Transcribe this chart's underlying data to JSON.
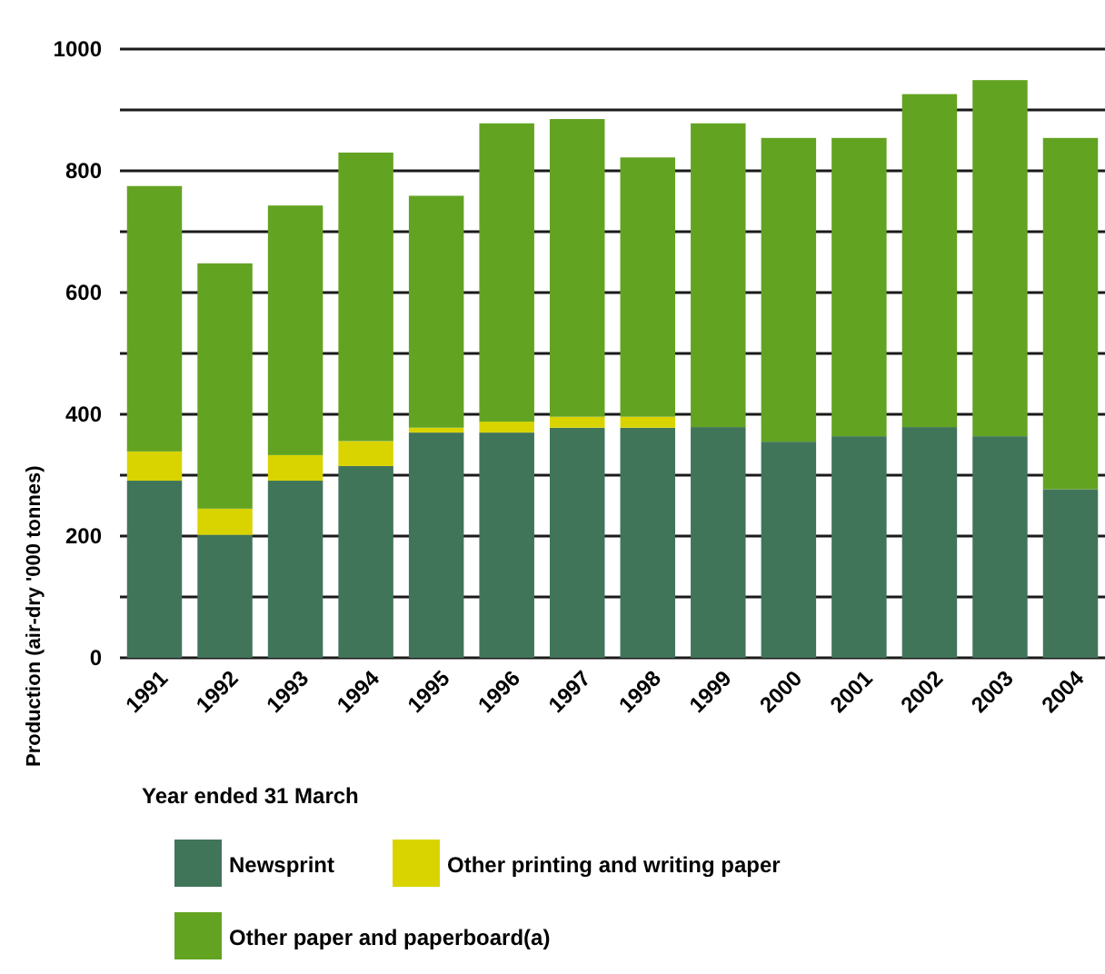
{
  "chart_data": {
    "type": "bar",
    "stacked": true,
    "xlabel": "Year ended 31 March",
    "ylabel": "Production (air-dry '000 tonnes)",
    "categories": [
      "1991",
      "1992",
      "1993",
      "1994",
      "1995",
      "1996",
      "1997",
      "1998",
      "1999",
      "2000",
      "2001",
      "2002",
      "2003",
      "2004"
    ],
    "series": [
      {
        "name": "Newsprint",
        "color": "#41755a",
        "values": [
          291,
          202,
          291,
          315,
          370,
          370,
          378,
          378,
          379,
          355,
          364,
          379,
          364,
          277
        ]
      },
      {
        "name": "Other printing and writing paper",
        "color": "#d9d400",
        "values": [
          48,
          43,
          42,
          41,
          8,
          18,
          18,
          18,
          0,
          0,
          0,
          0,
          0,
          0
        ]
      },
      {
        "name": "Other paper and paperboard(a)",
        "color": "#63a322",
        "values": [
          436,
          403,
          410,
          474,
          381,
          490,
          489,
          426,
          499,
          499,
          490,
          547,
          585,
          577
        ]
      }
    ],
    "ylim": [
      0,
      1000
    ],
    "yticks": [
      0,
      {
        "value": 100,
        "label": null
      },
      200,
      {
        "value": 300,
        "label": null
      },
      400,
      {
        "value": 500,
        "label": null
      },
      600,
      {
        "value": 700,
        "label": null
      },
      800,
      {
        "value": 900,
        "label": null
      },
      1000
    ],
    "grid": "y",
    "legend": "bottom"
  }
}
